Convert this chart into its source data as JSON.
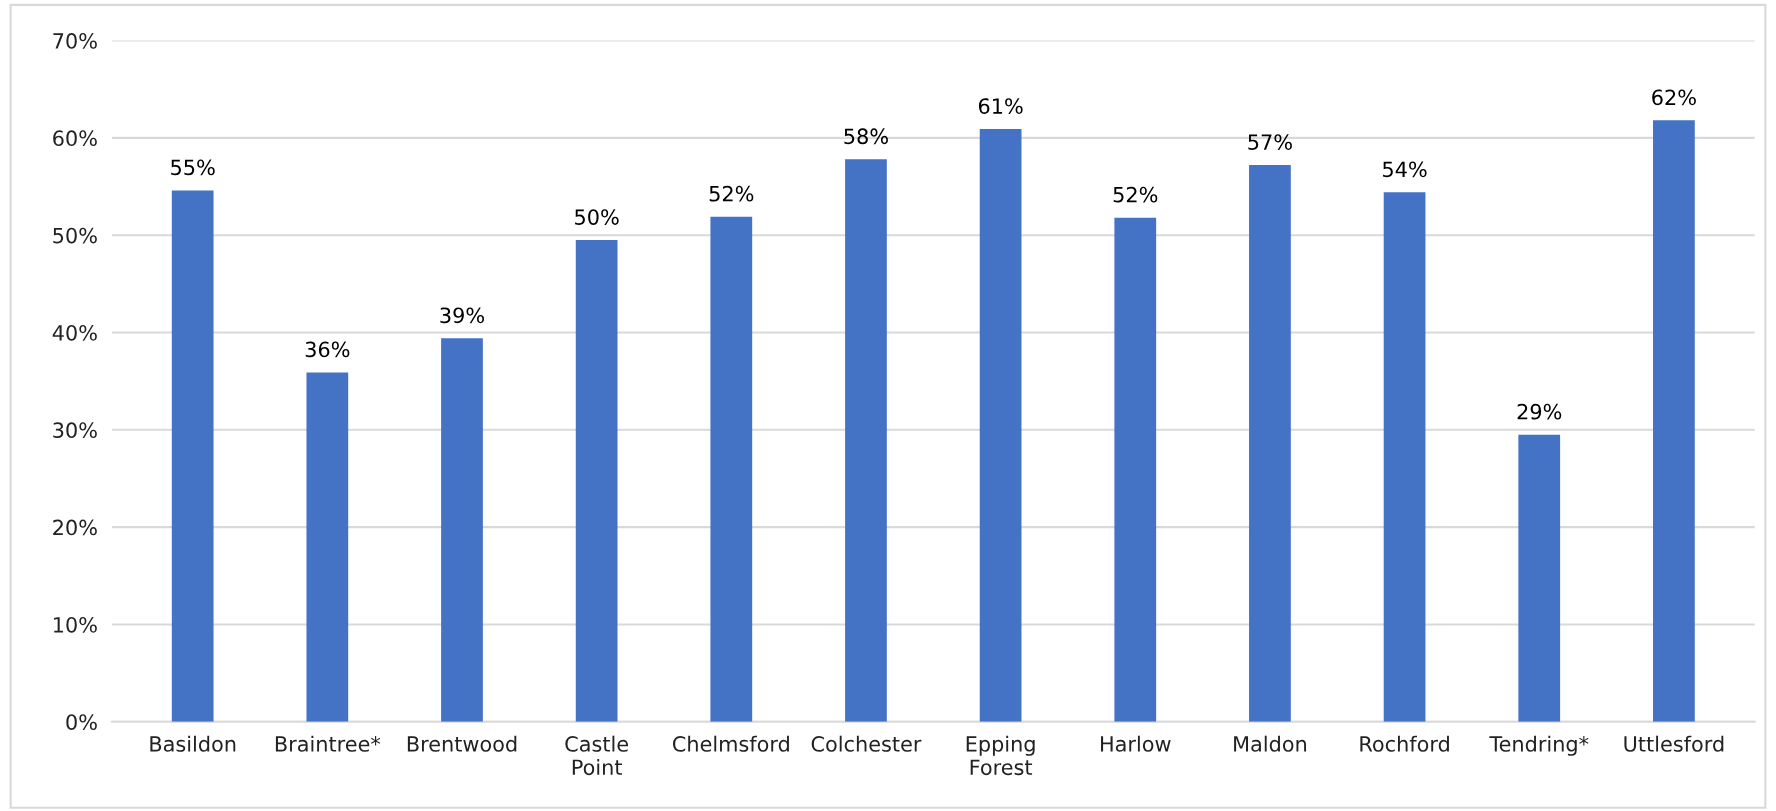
{
  "chart_data": {
    "type": "bar",
    "categories": [
      "Basildon",
      "Braintree*",
      "Brentwood",
      "Castle Point",
      "Chelmsford",
      "Colchester",
      "Epping Forest",
      "Harlow",
      "Maldon",
      "Rochford",
      "Tendring*",
      "Uttlesford"
    ],
    "values": [
      54.6,
      35.9,
      39.4,
      49.5,
      51.9,
      57.8,
      60.9,
      51.8,
      57.2,
      54.4,
      29.5,
      61.8
    ],
    "value_labels": [
      "55%",
      "36%",
      "39%",
      "50%",
      "52%",
      "58%",
      "61%",
      "52%",
      "57%",
      "54%",
      "29%",
      "62%"
    ],
    "color": "#4472c4",
    "ylim": [
      0,
      70
    ],
    "yticks": [
      {
        "value": 0,
        "label": "0%"
      },
      {
        "value": 10,
        "label": "10%"
      },
      {
        "value": 20,
        "label": "20%"
      },
      {
        "value": 30,
        "label": "30%"
      },
      {
        "value": 40,
        "label": "40%"
      },
      {
        "value": 50,
        "label": "50%"
      },
      {
        "value": 60,
        "label": "60%"
      },
      {
        "value": 70,
        "label": "70%"
      }
    ],
    "grid": "y",
    "legend": false
  }
}
